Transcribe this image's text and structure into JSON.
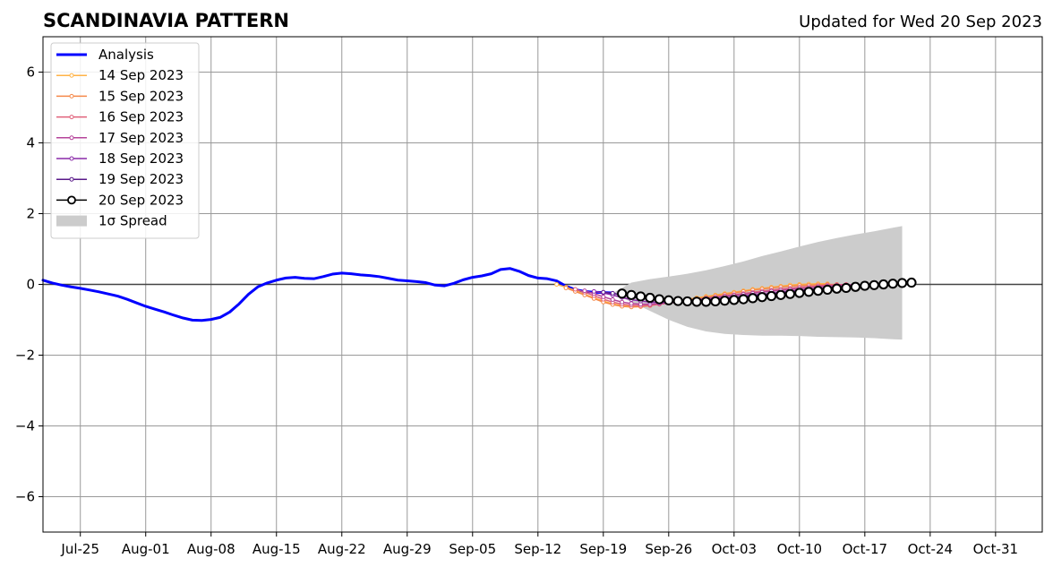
{
  "title": "SCANDINAVIA PATTERN",
  "updated_label": "Updated for Wed 20 Sep 2023",
  "chart_data": {
    "type": "line",
    "title": "SCANDINAVIA PATTERN",
    "subtitle": "Updated for Wed 20 Sep 2023",
    "xlabel": "",
    "ylabel": "",
    "xlim": [
      "2023-07-21",
      "2023-11-05"
    ],
    "ylim": [
      -7,
      7
    ],
    "yticks": [
      -6,
      -4,
      -2,
      0,
      2,
      4,
      6
    ],
    "ytick_labels": [
      "−6",
      "−4",
      "−2",
      "0",
      "2",
      "4",
      "6"
    ],
    "xticks": [
      "2023-07-25",
      "2023-08-01",
      "2023-08-08",
      "2023-08-15",
      "2023-08-22",
      "2023-08-29",
      "2023-09-05",
      "2023-09-12",
      "2023-09-19",
      "2023-09-26",
      "2023-10-03",
      "2023-10-10",
      "2023-10-17",
      "2023-10-24",
      "2023-10-31"
    ],
    "xtick_labels": [
      "Jul-25",
      "Aug-01",
      "Aug-08",
      "Aug-15",
      "Aug-22",
      "Aug-29",
      "Sep-05",
      "Sep-12",
      "Sep-19",
      "Sep-26",
      "Oct-03",
      "Oct-10",
      "Oct-17",
      "Oct-24",
      "Oct-31"
    ],
    "grid": true,
    "legend_position": "upper-left",
    "zero_line": true,
    "analysis": {
      "name": "Analysis",
      "color": "#0000ff",
      "points": [
        [
          "2023-07-21",
          0.12
        ],
        [
          "2023-07-22",
          0.04
        ],
        [
          "2023-07-23",
          -0.02
        ],
        [
          "2023-07-24",
          -0.07
        ],
        [
          "2023-07-25",
          -0.11
        ],
        [
          "2023-07-26",
          -0.16
        ],
        [
          "2023-07-27",
          -0.21
        ],
        [
          "2023-07-28",
          -0.27
        ],
        [
          "2023-07-29",
          -0.33
        ],
        [
          "2023-07-30",
          -0.42
        ],
        [
          "2023-07-31",
          -0.52
        ],
        [
          "2023-08-01",
          -0.62
        ],
        [
          "2023-08-02",
          -0.7
        ],
        [
          "2023-08-03",
          -0.78
        ],
        [
          "2023-08-04",
          -0.87
        ],
        [
          "2023-08-05",
          -0.95
        ],
        [
          "2023-08-06",
          -1.01
        ],
        [
          "2023-08-07",
          -1.02
        ],
        [
          "2023-08-08",
          -0.99
        ],
        [
          "2023-08-09",
          -0.93
        ],
        [
          "2023-08-10",
          -0.78
        ],
        [
          "2023-08-11",
          -0.55
        ],
        [
          "2023-08-12",
          -0.28
        ],
        [
          "2023-08-13",
          -0.07
        ],
        [
          "2023-08-14",
          0.04
        ],
        [
          "2023-08-15",
          0.12
        ],
        [
          "2023-08-16",
          0.18
        ],
        [
          "2023-08-17",
          0.2
        ],
        [
          "2023-08-18",
          0.17
        ],
        [
          "2023-08-19",
          0.16
        ],
        [
          "2023-08-20",
          0.22
        ],
        [
          "2023-08-21",
          0.29
        ],
        [
          "2023-08-22",
          0.32
        ],
        [
          "2023-08-23",
          0.3
        ],
        [
          "2023-08-24",
          0.27
        ],
        [
          "2023-08-25",
          0.25
        ],
        [
          "2023-08-26",
          0.22
        ],
        [
          "2023-08-27",
          0.17
        ],
        [
          "2023-08-28",
          0.12
        ],
        [
          "2023-08-29",
          0.1
        ],
        [
          "2023-08-30",
          0.08
        ],
        [
          "2023-08-31",
          0.05
        ],
        [
          "2023-09-01",
          -0.02
        ],
        [
          "2023-09-02",
          -0.04
        ],
        [
          "2023-09-03",
          0.03
        ],
        [
          "2023-09-04",
          0.13
        ],
        [
          "2023-09-05",
          0.2
        ],
        [
          "2023-09-06",
          0.24
        ],
        [
          "2023-09-07",
          0.3
        ],
        [
          "2023-09-08",
          0.42
        ],
        [
          "2023-09-09",
          0.45
        ],
        [
          "2023-09-10",
          0.37
        ],
        [
          "2023-09-11",
          0.25
        ],
        [
          "2023-09-12",
          0.18
        ],
        [
          "2023-09-13",
          0.16
        ],
        [
          "2023-09-14",
          0.1
        ],
        [
          "2023-09-15",
          -0.05
        ],
        [
          "2023-09-16",
          -0.15
        ],
        [
          "2023-09-17",
          -0.2
        ],
        [
          "2023-09-18",
          -0.22
        ],
        [
          "2023-09-19",
          -0.23
        ],
        [
          "2023-09-20",
          -0.24
        ]
      ]
    },
    "forecasts": [
      {
        "name": "14 Sep 2023",
        "color": "#ffb347",
        "start": "2023-09-14",
        "values": [
          0.0,
          -0.08,
          -0.17,
          -0.28,
          -0.38,
          -0.47,
          -0.55,
          -0.6,
          -0.62,
          -0.61,
          -0.58,
          -0.54,
          -0.5,
          -0.46,
          -0.42,
          -0.38,
          -0.34,
          -0.3,
          -0.26,
          -0.22,
          -0.18,
          -0.14,
          -0.11,
          -0.08,
          -0.05,
          -0.02,
          0.0,
          0.01,
          0.02,
          0.02
        ]
      },
      {
        "name": "15 Sep 2023",
        "color": "#f5894a",
        "start": "2023-09-15",
        "values": [
          -0.1,
          -0.2,
          -0.3,
          -0.4,
          -0.5,
          -0.57,
          -0.62,
          -0.64,
          -0.63,
          -0.6,
          -0.56,
          -0.52,
          -0.48,
          -0.44,
          -0.4,
          -0.36,
          -0.32,
          -0.28,
          -0.24,
          -0.2,
          -0.16,
          -0.13,
          -0.1,
          -0.07,
          -0.05,
          -0.03,
          -0.02,
          -0.01,
          0.0,
          0.0
        ]
      },
      {
        "name": "16 Sep 2023",
        "color": "#e0607a",
        "start": "2023-09-16",
        "values": [
          -0.14,
          -0.22,
          -0.32,
          -0.42,
          -0.5,
          -0.56,
          -0.59,
          -0.6,
          -0.59,
          -0.56,
          -0.53,
          -0.5,
          -0.46,
          -0.43,
          -0.39,
          -0.36,
          -0.32,
          -0.29,
          -0.26,
          -0.22,
          -0.19,
          -0.16,
          -0.13,
          -0.11,
          -0.08,
          -0.06,
          -0.04,
          -0.02,
          -0.01,
          0.0
        ]
      },
      {
        "name": "17 Sep 2023",
        "color": "#b5449a",
        "start": "2023-09-17",
        "values": [
          -0.18,
          -0.26,
          -0.35,
          -0.43,
          -0.5,
          -0.54,
          -0.56,
          -0.56,
          -0.54,
          -0.52,
          -0.49,
          -0.46,
          -0.43,
          -0.4,
          -0.37,
          -0.34,
          -0.31,
          -0.28,
          -0.25,
          -0.22,
          -0.19,
          -0.17,
          -0.14,
          -0.12,
          -0.1,
          -0.07,
          -0.05,
          -0.03,
          -0.02,
          0.0
        ]
      },
      {
        "name": "18 Sep 2023",
        "color": "#8a2aa8",
        "start": "2023-09-18",
        "values": [
          -0.2,
          -0.24,
          -0.3,
          -0.37,
          -0.43,
          -0.47,
          -0.5,
          -0.51,
          -0.51,
          -0.5,
          -0.48,
          -0.46,
          -0.43,
          -0.41,
          -0.38,
          -0.36,
          -0.33,
          -0.3,
          -0.28,
          -0.25,
          -0.22,
          -0.19,
          -0.17,
          -0.14,
          -0.12,
          -0.09,
          -0.07,
          -0.05,
          -0.03,
          0.0
        ]
      },
      {
        "name": "19 Sep 2023",
        "color": "#5a1a8a",
        "start": "2023-09-19",
        "values": [
          -0.22,
          -0.25,
          -0.3,
          -0.35,
          -0.39,
          -0.42,
          -0.44,
          -0.45,
          -0.46,
          -0.46,
          -0.45,
          -0.44,
          -0.42,
          -0.4,
          -0.38,
          -0.36,
          -0.33,
          -0.31,
          -0.28,
          -0.26,
          -0.23,
          -0.2,
          -0.18,
          -0.15,
          -0.12,
          -0.1,
          -0.07,
          -0.05,
          -0.02,
          0.0
        ]
      },
      {
        "name": "20 Sep 2023",
        "color": "#000000",
        "start": "2023-09-21",
        "values": [
          -0.26,
          -0.3,
          -0.34,
          -0.38,
          -0.42,
          -0.45,
          -0.47,
          -0.48,
          -0.49,
          -0.49,
          -0.48,
          -0.46,
          -0.44,
          -0.42,
          -0.39,
          -0.36,
          -0.33,
          -0.3,
          -0.27,
          -0.24,
          -0.21,
          -0.18,
          -0.15,
          -0.12,
          -0.1,
          -0.07,
          -0.04,
          -0.02,
          0.0,
          0.02,
          0.04,
          0.05
        ]
      }
    ],
    "spread": {
      "name": "1σ Spread",
      "color": "#cccccc",
      "points": [
        [
          "2023-09-20",
          -0.25,
          -0.25
        ],
        [
          "2023-09-22",
          -0.5,
          0.05
        ],
        [
          "2023-09-24",
          -0.75,
          0.15
        ],
        [
          "2023-09-26",
          -1.0,
          0.22
        ],
        [
          "2023-09-28",
          -1.2,
          0.3
        ],
        [
          "2023-09-30",
          -1.33,
          0.4
        ],
        [
          "2023-10-02",
          -1.4,
          0.52
        ],
        [
          "2023-10-04",
          -1.43,
          0.65
        ],
        [
          "2023-10-06",
          -1.45,
          0.8
        ],
        [
          "2023-10-08",
          -1.45,
          0.93
        ],
        [
          "2023-10-10",
          -1.46,
          1.07
        ],
        [
          "2023-10-12",
          -1.48,
          1.2
        ],
        [
          "2023-10-14",
          -1.49,
          1.31
        ],
        [
          "2023-10-16",
          -1.5,
          1.41
        ],
        [
          "2023-10-18",
          -1.52,
          1.5
        ],
        [
          "2023-10-20",
          -1.55,
          1.6
        ],
        [
          "2023-10-21",
          -1.56,
          1.65
        ]
      ]
    }
  }
}
